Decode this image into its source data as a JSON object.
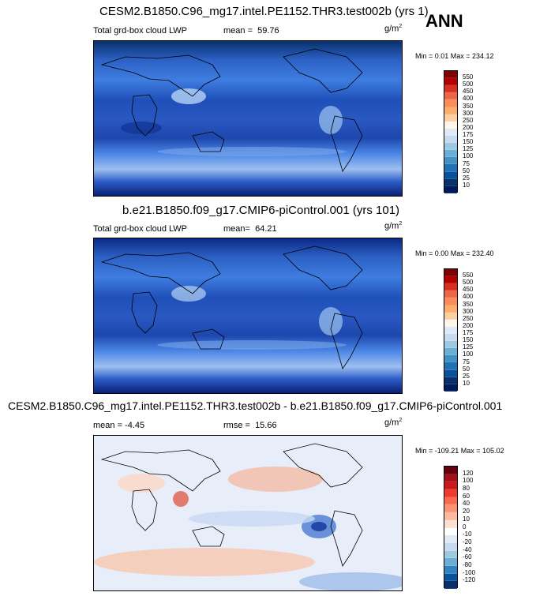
{
  "season": "ANN",
  "units_base": "g/m",
  "units_exp": "2",
  "panels": [
    {
      "id": "test",
      "title": "CESM2.B1850.C96_mg17.intel.PE1152.THR3.test002b (yrs 1)",
      "variable": "Total grd-box cloud LWP",
      "stat1_label": "mean =",
      "stat1_value": "59.76",
      "minmax": "Min =  0.01 Max = 234.12",
      "colorbar_labels": [
        "550",
        "500",
        "450",
        "400",
        "350",
        "300",
        "250",
        "200",
        "175",
        "150",
        "125",
        "100",
        "75",
        "50",
        "25",
        "10"
      ],
      "colorbar_colors": [
        "#7f0000",
        "#b30000",
        "#d7301f",
        "#ef6548",
        "#fc8d59",
        "#fdae6b",
        "#fdd0a2",
        "#fff5eb",
        "#deebf7",
        "#c6dbef",
        "#9ecae1",
        "#6baed6",
        "#4292c6",
        "#2171b5",
        "#08519c",
        "#08306b",
        "#001a5c"
      ]
    },
    {
      "id": "ctrl",
      "title": "b.e21.B1850.f09_g17.CMIP6-piControl.001 (yrs 101)",
      "variable": "Total grd-box cloud LWP",
      "stat1_label": "mean=",
      "stat1_value": "64.21",
      "minmax": "Min =  0.00 Max = 232.40",
      "colorbar_labels": [
        "550",
        "500",
        "450",
        "400",
        "350",
        "300",
        "250",
        "200",
        "175",
        "150",
        "125",
        "100",
        "75",
        "50",
        "25",
        "10"
      ],
      "colorbar_colors": [
        "#7f0000",
        "#b30000",
        "#d7301f",
        "#ef6548",
        "#fc8d59",
        "#fdae6b",
        "#fdd0a2",
        "#fff5eb",
        "#deebf7",
        "#c6dbef",
        "#9ecae1",
        "#6baed6",
        "#4292c6",
        "#2171b5",
        "#08519c",
        "#08306b",
        "#001a5c"
      ]
    },
    {
      "id": "diff",
      "title": "CESM2.B1850.C96_mg17.intel.PE1152.THR3.test002b - b.e21.B1850.f09_g17.CMIP6-piControl.001",
      "stat1_label": "mean =",
      "stat1_value": "-4.45",
      "stat2_label": "rmse =",
      "stat2_value": "15.66",
      "minmax": "Min = -109.21 Max = 105.02",
      "colorbar_labels": [
        "120",
        "100",
        "80",
        "60",
        "40",
        "20",
        "10",
        "0",
        "-10",
        "-20",
        "-40",
        "-60",
        "-80",
        "-100",
        "-120"
      ],
      "colorbar_colors": [
        "#67000d",
        "#a50f15",
        "#cb181d",
        "#ef3b2c",
        "#fb6a4a",
        "#fc9272",
        "#fcbba1",
        "#fee0d2",
        "#ffffff",
        "#deebf7",
        "#c6dbef",
        "#9ecae1",
        "#6baed6",
        "#3182bd",
        "#08519c",
        "#08306b"
      ]
    }
  ]
}
